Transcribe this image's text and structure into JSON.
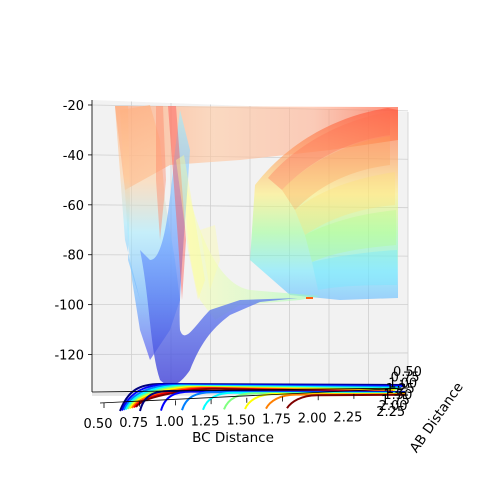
{
  "chart_data": {
    "type": "surface-3d",
    "xlabel": "BC Distance",
    "ylabel": "AB Distance",
    "zlabel": "",
    "x_ticks": [
      "0.50",
      "0.75",
      "1.00",
      "1.25",
      "1.50",
      "1.75",
      "2.00",
      "2.25"
    ],
    "y_ticks": [
      "0.50",
      "0.75",
      "1.00",
      "1.25",
      "1.50",
      "1.75",
      "2.00",
      "2.25"
    ],
    "z_ticks": [
      -20,
      -40,
      -60,
      -80,
      -100,
      -120
    ],
    "xlim": [
      0.5,
      2.5
    ],
    "ylim": [
      0.5,
      2.5
    ],
    "zlim": [
      -135,
      -18
    ],
    "colormap": [
      "#00007f",
      "#0000ff",
      "#007fff",
      "#00ffff",
      "#7fff7f",
      "#ffff00",
      "#ff7f00",
      "#ff0000",
      "#7f0000"
    ],
    "grid": true,
    "description_pes": "potential energy surface with projected contours"
  }
}
